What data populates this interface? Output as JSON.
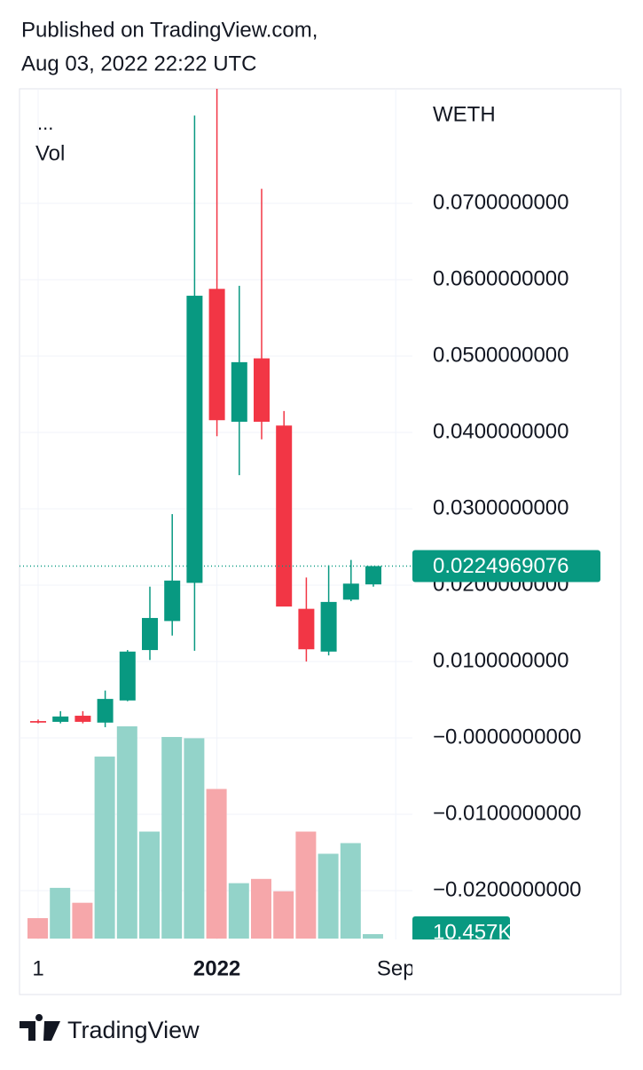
{
  "header": {
    "published": "Published on TradingView.com,",
    "timestamp": "Aug 03, 2022 22:22 UTC"
  },
  "chart_data": {
    "type": "candlestick",
    "symbol": "WETH",
    "legend_title": "...",
    "volume_label": "Vol",
    "categories": [
      "1",
      null,
      null,
      null,
      null,
      null,
      null,
      null,
      "2022",
      null,
      null,
      null,
      null,
      null,
      null,
      null,
      "Sep"
    ],
    "open": [
      0.0022,
      0.0021,
      0.0029,
      0.002,
      0.0049,
      0.0115,
      0.0153,
      0.0203,
      0.0588,
      0.0414,
      0.0497,
      0.0409,
      0.0169,
      0.0113,
      0.0181,
      0.0201,
      null
    ],
    "high": [
      0.0024,
      0.0035,
      0.0035,
      0.0062,
      0.0115,
      0.0198,
      0.0293,
      0.0815,
      0.087,
      0.0592,
      0.0719,
      0.0428,
      0.021,
      0.0226,
      0.0233,
      0.0225,
      null
    ],
    "low": [
      0.0019,
      0.0019,
      0.0019,
      0.0014,
      0.0048,
      0.0102,
      0.0134,
      0.0114,
      0.0395,
      0.0344,
      0.0391,
      0.0172,
      0.01,
      0.0108,
      0.0179,
      0.0198,
      null
    ],
    "close": [
      0.002,
      0.0028,
      0.0021,
      0.0051,
      0.0113,
      0.0157,
      0.0206,
      0.0579,
      0.0416,
      0.0492,
      0.0414,
      0.0172,
      0.0116,
      0.0178,
      0.0202,
      0.0224969076,
      null
    ],
    "volume": [
      48000,
      119000,
      84000,
      427000,
      498000,
      251000,
      473000,
      470000,
      351000,
      130000,
      140000,
      111000,
      251000,
      199000,
      224000,
      10457,
      null
    ],
    "ylim": [
      -0.0264,
      0.085
    ],
    "yticks": [
      {
        "value": 0.07,
        "label": "0.0700000000"
      },
      {
        "value": 0.06,
        "label": "0.0600000000"
      },
      {
        "value": 0.05,
        "label": "0.0500000000"
      },
      {
        "value": 0.04,
        "label": "0.0400000000"
      },
      {
        "value": 0.03,
        "label": "0.0300000000"
      },
      {
        "value": 0.02,
        "label": "0.0200000000"
      },
      {
        "value": 0.01,
        "label": "0.0100000000"
      },
      {
        "value": 0,
        "label": "−0.0000000000"
      },
      {
        "value": -0.01,
        "label": "−0.0100000000"
      },
      {
        "value": -0.02,
        "label": "−0.0200000000"
      }
    ],
    "volume_ylim": [
      0,
      500000
    ],
    "last_price": 0.0224969076,
    "last_volume": {
      "value": 10457,
      "label": "10.457K"
    },
    "color_up": "#089981",
    "color_down": "#f23645",
    "volume_color_up": "#93d3c9",
    "volume_color_down": "#f6a7aa",
    "grid": true
  },
  "footer": {
    "brand": "TradingView"
  }
}
